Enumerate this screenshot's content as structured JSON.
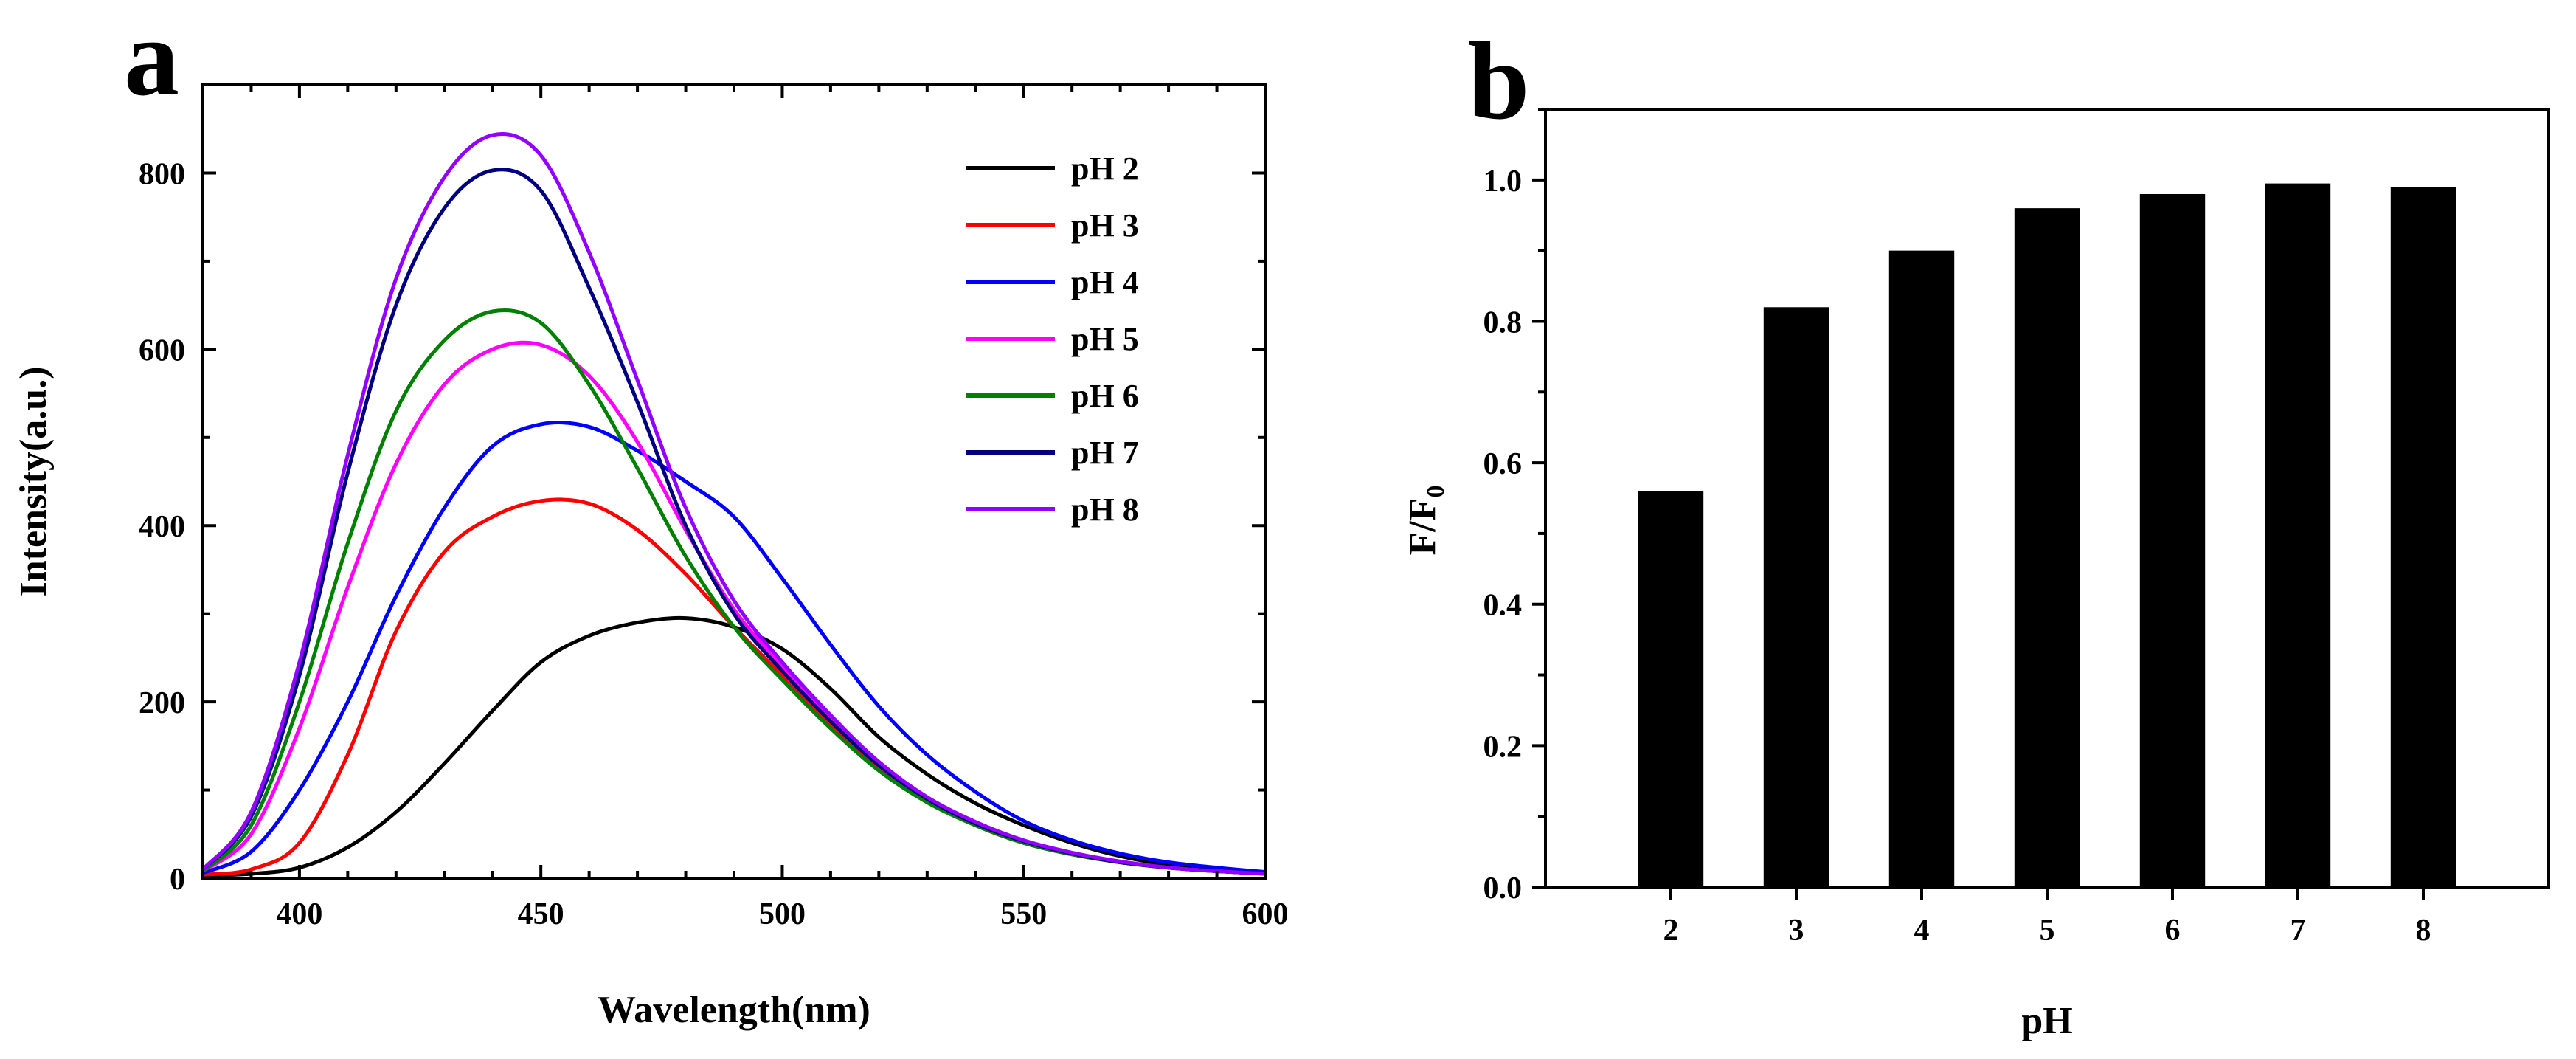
{
  "figure": {
    "panel_a_letter": "a",
    "panel_b_letter": "b"
  },
  "chart_data": [
    {
      "type": "line",
      "panel": "a",
      "title": "",
      "xlabel": "Wavelength(nm)",
      "ylabel": "Intensity(a.u.)",
      "xlim": [
        380,
        600
      ],
      "ylim": [
        0,
        900
      ],
      "xticks": [
        400,
        450,
        500,
        550,
        600
      ],
      "yticks": [
        0,
        200,
        400,
        600,
        800
      ],
      "x": [
        380,
        390,
        400,
        410,
        420,
        430,
        440,
        450,
        460,
        470,
        480,
        490,
        500,
        510,
        520,
        530,
        540,
        550,
        560,
        570,
        580,
        590,
        600
      ],
      "legend_position": "top-right",
      "series": [
        {
          "name": "pH 2",
          "color": "#000000",
          "values": [
            3,
            5,
            12,
            35,
            75,
            130,
            190,
            245,
            275,
            290,
            295,
            285,
            260,
            215,
            160,
            118,
            85,
            60,
            40,
            25,
            15,
            10,
            6
          ]
        },
        {
          "name": "pH 3",
          "color": "#ff0000",
          "values": [
            4,
            10,
            40,
            140,
            280,
            370,
            410,
            428,
            425,
            395,
            345,
            285,
            230,
            175,
            125,
            88,
            60,
            40,
            27,
            18,
            12,
            8,
            5
          ]
        },
        {
          "name": "pH 4",
          "color": "#0000ff",
          "values": [
            6,
            30,
            100,
            200,
            320,
            420,
            490,
            515,
            512,
            485,
            450,
            410,
            340,
            265,
            195,
            140,
            98,
            65,
            43,
            28,
            18,
            12,
            7
          ]
        },
        {
          "name": "pH 5",
          "color": "#ff00ff",
          "values": [
            8,
            50,
            170,
            330,
            470,
            560,
            600,
            605,
            570,
            495,
            395,
            305,
            240,
            180,
            128,
            90,
            62,
            42,
            28,
            18,
            12,
            8,
            5
          ]
        },
        {
          "name": "pH 6",
          "color": "#008000",
          "values": [
            8,
            60,
            200,
            380,
            530,
            610,
            643,
            630,
            560,
            465,
            365,
            285,
            225,
            170,
            122,
            86,
            60,
            40,
            27,
            18,
            12,
            8,
            5
          ]
        },
        {
          "name": "pH 7",
          "color": "#000080",
          "values": [
            10,
            70,
            230,
            460,
            650,
            760,
            803,
            780,
            670,
            540,
            400,
            300,
            235,
            178,
            128,
            90,
            62,
            42,
            28,
            18,
            12,
            8,
            5
          ]
        },
        {
          "name": "pH 8",
          "color": "#9400ff",
          "values": [
            10,
            75,
            245,
            480,
            680,
            795,
            843,
            820,
            710,
            565,
            420,
            315,
            245,
            185,
            132,
            92,
            64,
            43,
            29,
            19,
            12,
            8,
            5
          ]
        }
      ]
    },
    {
      "type": "bar",
      "panel": "b",
      "title": "",
      "xlabel": "pH",
      "ylabel": "F/F",
      "ylabel_subscript": "0",
      "ylim": [
        0,
        1.1
      ],
      "yticks": [
        "0.0",
        "0.2",
        "0.4",
        "0.6",
        "0.8",
        "1.0"
      ],
      "categories": [
        "2",
        "3",
        "4",
        "5",
        "6",
        "7",
        "8"
      ],
      "values": [
        0.56,
        0.82,
        0.9,
        0.96,
        0.98,
        0.995,
        0.99
      ],
      "bar_color": "#000000"
    }
  ]
}
